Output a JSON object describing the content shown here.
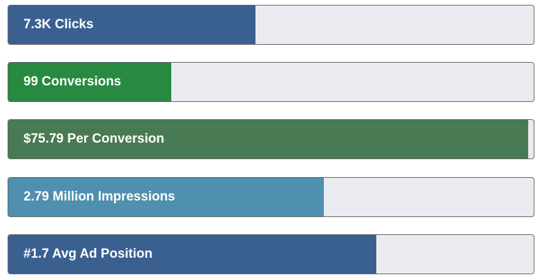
{
  "metrics": [
    {
      "label": "7.3K Clicks",
      "percent": 47,
      "color": "#3a6090"
    },
    {
      "label": "99 Conversions",
      "percent": 31,
      "color": "#288a40"
    },
    {
      "label": "$75.79 Per Conversion",
      "percent": 99,
      "color": "#487a53"
    },
    {
      "label": "2.79 Million Impressions",
      "percent": 60,
      "color": "#4e90ae"
    },
    {
      "label": "#1.7 Avg Ad Position",
      "percent": 70,
      "color": "#3a6090"
    }
  ]
}
